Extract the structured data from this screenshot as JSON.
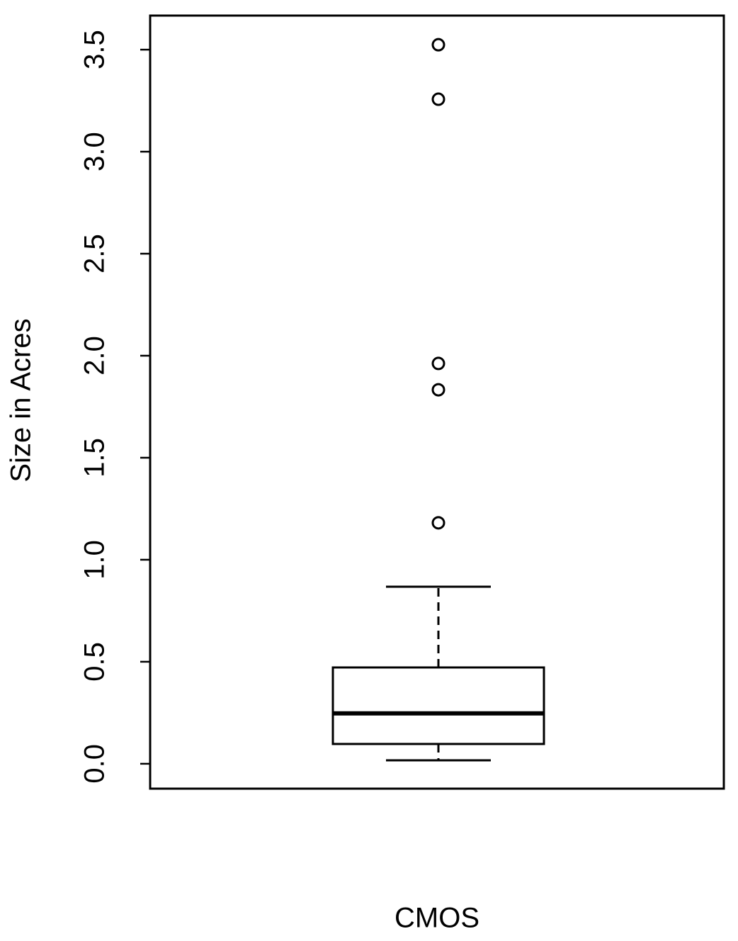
{
  "chart_data": {
    "type": "box",
    "xlabel": "CMOS",
    "ylabel": "Size in Acres",
    "ylim": [
      -0.122,
      3.667
    ],
    "yticks": [
      {
        "value": 0,
        "label": "0.0"
      },
      0.5,
      {
        "value": 1,
        "label": "1.0"
      },
      1.5,
      {
        "value": 2,
        "label": "2.0"
      },
      2.5,
      {
        "value": 3,
        "label": "3.0"
      },
      3.5
    ],
    "boxes": [
      {
        "whisker_low": 0.017,
        "q1": 0.097,
        "median": 0.247,
        "q3": 0.472,
        "whisker_high": 0.868,
        "outliers": [
          3.524,
          3.257,
          1.962,
          1.833,
          1.181
        ]
      }
    ]
  }
}
